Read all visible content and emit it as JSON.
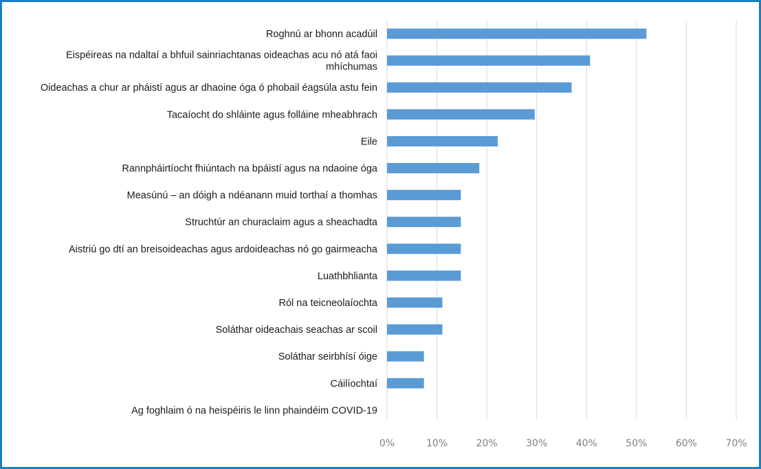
{
  "chart_data": {
    "type": "bar",
    "orientation": "horizontal",
    "categories": [
      [
        "Roghnú ar bhonn acadúil"
      ],
      [
        "Eispéireas na ndaltaí a bhfuil sainriachtanas oideachas acu nó atá faoi",
        "mhíchumas"
      ],
      [
        "Oideachas a chur ar pháistí agus ar dhaoine óga ó phobail éagsúla astu fein"
      ],
      [
        "Tacaíocht do shláinte agus folláine mheabhrach"
      ],
      [
        "Eile"
      ],
      [
        "Rannpháirtíocht fhiúntach na bpáistí agus na ndaoine óga"
      ],
      [
        "Measúnú – an dóigh a ndéanann muid torthaí a thomhas"
      ],
      [
        "Struchtúr an churaclaim agus a sheachadta"
      ],
      [
        "Aistriú go dtí an breisoideachas agus ardoideachas nó go gairmeacha"
      ],
      [
        "Luathbhlianta"
      ],
      [
        "Ról na teicneolaíochta"
      ],
      [
        "Soláthar oideachais seachas ar scoil"
      ],
      [
        "Soláthar seirbhísí óige"
      ],
      [
        "Cáilíochtaí"
      ],
      [
        "Ag foghlaim ó na heispéiris le linn phaindéim COVID-19"
      ]
    ],
    "values": [
      52,
      40.7,
      37,
      29.6,
      22.2,
      18.5,
      14.8,
      14.8,
      14.8,
      14.8,
      11.1,
      11.1,
      7.4,
      7.4,
      0
    ],
    "x_ticks": [
      "0%",
      "10%",
      "20%",
      "30%",
      "40%",
      "50%",
      "60%",
      "70%"
    ],
    "xlim": [
      0,
      70
    ],
    "grid": true,
    "bar_color": "#5b9bd5",
    "grid_color": "#d9d9d9",
    "frame_color": "#1a7fc4",
    "title": "",
    "xlabel": "",
    "ylabel": ""
  }
}
